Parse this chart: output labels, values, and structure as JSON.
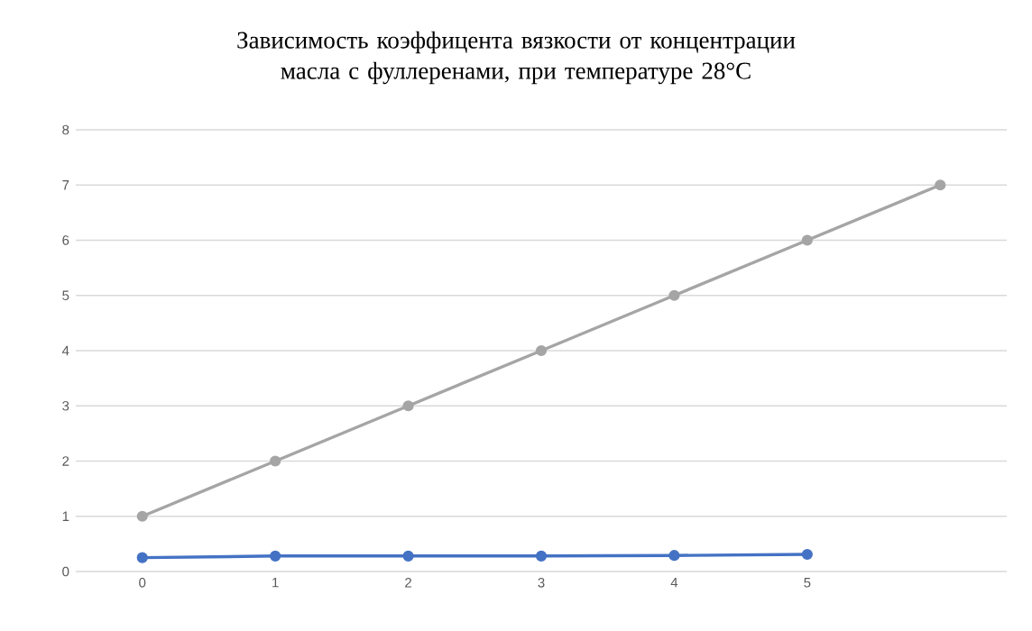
{
  "chart_data": {
    "type": "line",
    "title": "Зависимость коэффицента вязкости от концентрации масла с фуллеренами, при температуре 28°C",
    "categories": [
      "0",
      "1",
      "2",
      "3",
      "4",
      "5",
      null
    ],
    "series": [
      {
        "color": "#4472c4",
        "values": [
          0.25,
          0.28,
          0.28,
          0.28,
          0.29,
          0.31,
          null
        ]
      },
      {
        "color": "#a5a5a5",
        "values": [
          1,
          2,
          3,
          4,
          5,
          6,
          7
        ]
      }
    ],
    "ylim": [
      0,
      8
    ],
    "yticks": [
      0,
      1,
      2,
      3,
      4,
      5,
      6,
      7,
      8
    ],
    "grid": "y",
    "marker": "circle",
    "line_style": "solid",
    "legend": false
  }
}
